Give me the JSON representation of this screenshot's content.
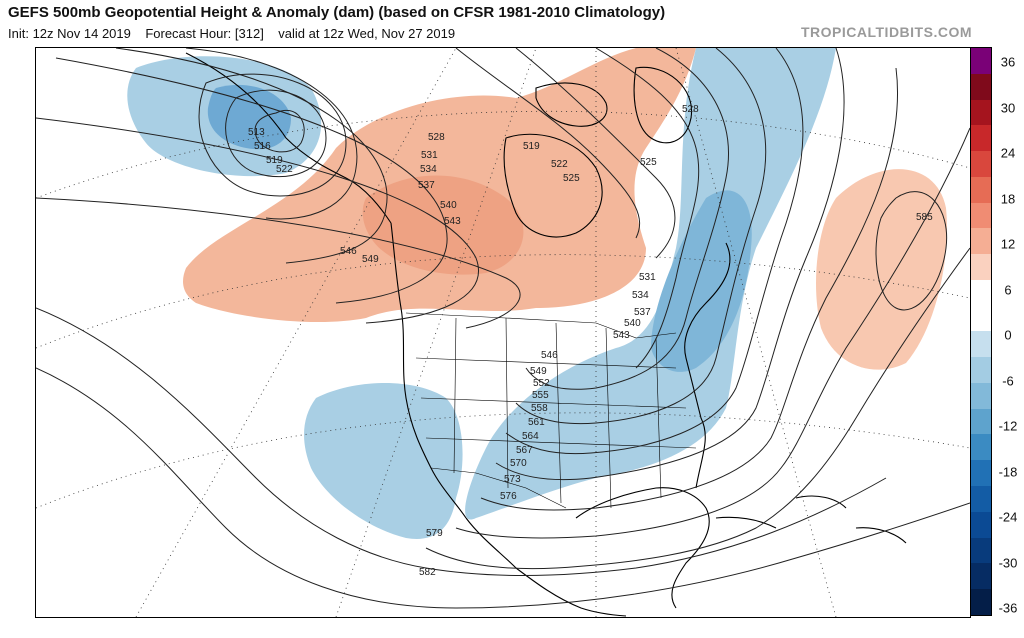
{
  "header": {
    "title": "GEFS 500mb Geopotential Height & Anomaly (dam) (based on CFSR 1981-2010 Climatology)",
    "init_label": "Init: 12z Nov 14 2019",
    "forecast_hour_label": "Forecast Hour: [312]",
    "valid_label": "valid at 12z Wed, Nov 27 2019",
    "brand": "TROPICALTIDBITS.COM"
  },
  "map": {
    "contour_labels": [
      "513",
      "516",
      "519",
      "522",
      "528",
      "531",
      "534",
      "537",
      "540",
      "543",
      "546",
      "549",
      "519",
      "522",
      "525",
      "528",
      "525",
      "585",
      "531",
      "534",
      "537",
      "540",
      "543",
      "546",
      "549",
      "552",
      "555",
      "558",
      "561",
      "564",
      "567",
      "570",
      "573",
      "576",
      "579",
      "582"
    ],
    "colors": {
      "positive_anomaly": "#f3b79b",
      "negative_anomaly": "#a9cfe4",
      "strong_negative": "#5b9cc9",
      "contour": "#222222"
    }
  },
  "colorbar": {
    "ticks": [
      "36",
      "30",
      "24",
      "18",
      "12",
      "6",
      "0",
      "-6",
      "-12",
      "-18",
      "-24",
      "-30",
      "-36"
    ],
    "colors": [
      "#7a0177",
      "#7f0a1b",
      "#a5141e",
      "#c8282a",
      "#d9473d",
      "#e66c55",
      "#f08c73",
      "#f5ae94",
      "#fad1bf",
      "#ffffff",
      "#ffffff",
      "#c6dfee",
      "#a3cce3",
      "#82b9d9",
      "#5ea3cd",
      "#3b8bc2",
      "#2171b5",
      "#135ca5",
      "#0b4a94",
      "#083b7c",
      "#062c63",
      "#041e48"
    ]
  }
}
